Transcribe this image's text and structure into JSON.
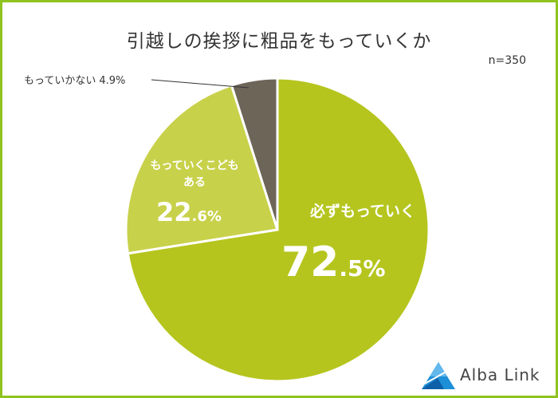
{
  "chart_data": {
    "type": "pie",
    "title": "引越しの挨拶に粗品をもっていくか",
    "note": "n=350",
    "slices": [
      {
        "label": "必ずもっていく",
        "value": 72.5,
        "value_main": "72",
        "value_decimal": ".5%",
        "color": "#b5c51e"
      },
      {
        "label": "もっていくこともある",
        "label_line1": "もっていくこども",
        "label_line2": "ある",
        "value": 22.6,
        "value_main": "22",
        "value_decimal": ".6%",
        "color": "#c8d14a"
      },
      {
        "label": "もっていかない",
        "value": 4.9,
        "value_text": "4.9%",
        "color": "#6e6559"
      }
    ]
  },
  "brand": {
    "name": "Alba Link"
  }
}
